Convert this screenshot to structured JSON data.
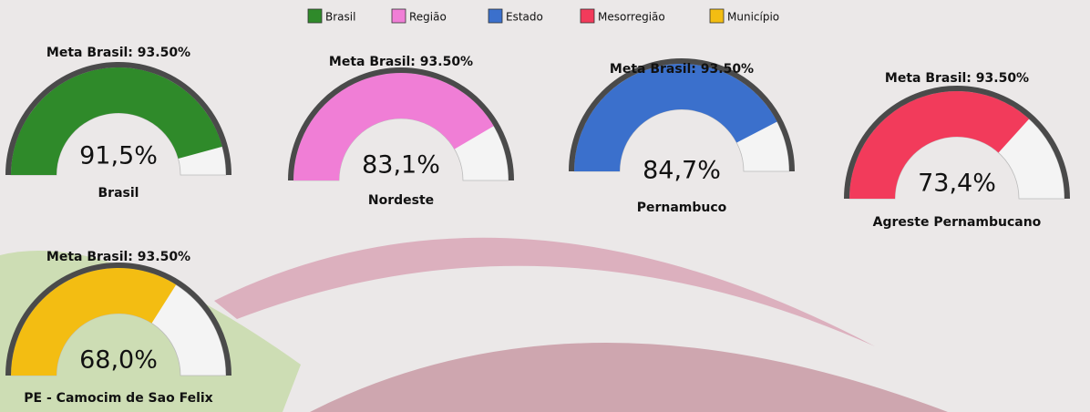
{
  "legend": [
    {
      "name": "Brasil",
      "color": "#2f8a2a"
    },
    {
      "name": "Região",
      "color": "#f07ed6"
    },
    {
      "name": "Estado",
      "color": "#3b70cc"
    },
    {
      "name": "Mesorregião",
      "color": "#f23b5b"
    },
    {
      "name": "Município",
      "color": "#f3bd12"
    }
  ],
  "chart_data": [
    {
      "type": "gauge",
      "title": "Meta Brasil: 93.50%",
      "categories": [
        "Brasil"
      ],
      "values": [
        91.5
      ],
      "value_labels": [
        "91,5%"
      ],
      "color": "#2f8a2a",
      "ylim": [
        0,
        100
      ]
    },
    {
      "type": "gauge",
      "title": "Meta Brasil: 93.50%",
      "categories": [
        "Nordeste"
      ],
      "values": [
        83.1
      ],
      "value_labels": [
        "83,1%"
      ],
      "color": "#f07ed6",
      "ylim": [
        0,
        100
      ]
    },
    {
      "type": "gauge",
      "title": "Meta Brasil: 93.50%",
      "categories": [
        "Pernambuco"
      ],
      "values": [
        84.7
      ],
      "value_labels": [
        "84,7%"
      ],
      "color": "#3b70cc",
      "ylim": [
        0,
        100
      ]
    },
    {
      "type": "gauge",
      "title": "Meta Brasil: 93.50%",
      "categories": [
        "Agreste Pernambucano"
      ],
      "values": [
        73.4
      ],
      "value_labels": [
        "73,4%"
      ],
      "color": "#f23b5b",
      "ylim": [
        0,
        100
      ]
    },
    {
      "type": "gauge",
      "title": "Meta Brasil: 93.50%",
      "categories": [
        "PE - Camocim de Sao Felix"
      ],
      "values": [
        68.0
      ],
      "value_labels": [
        "68,0%"
      ],
      "color": "#f3bd12",
      "ylim": [
        0,
        100
      ]
    }
  ]
}
